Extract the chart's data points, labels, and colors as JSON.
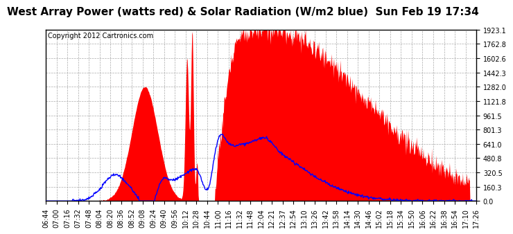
{
  "title": "West Array Power (watts red) & Solar Radiation (W/m2 blue)  Sun Feb 19 17:34",
  "copyright": "Copyright 2012 Cartronics.com",
  "bg_color": "#ffffff",
  "plot_bg_color": "#ffffff",
  "grid_color": "#aaaaaa",
  "red_fill_color": "#ff0000",
  "blue_line_color": "#0000ff",
  "ymin": 0.0,
  "ymax": 1923.1,
  "yticks": [
    0.0,
    160.3,
    320.5,
    480.8,
    641.0,
    801.3,
    961.5,
    1121.8,
    1282.0,
    1442.3,
    1602.6,
    1762.8,
    1923.1
  ],
  "x_labels": [
    "06:44",
    "07:00",
    "07:16",
    "07:32",
    "07:48",
    "08:04",
    "08:20",
    "08:36",
    "08:52",
    "09:08",
    "09:24",
    "09:40",
    "09:56",
    "10:12",
    "10:28",
    "10:44",
    "11:00",
    "11:16",
    "11:32",
    "11:48",
    "12:04",
    "12:21",
    "12:37",
    "12:54",
    "13:10",
    "13:26",
    "13:42",
    "13:58",
    "14:14",
    "14:30",
    "14:46",
    "15:02",
    "15:18",
    "15:34",
    "15:50",
    "16:06",
    "16:22",
    "16:38",
    "16:54",
    "17:10",
    "17:26"
  ],
  "title_fontsize": 11,
  "copyright_fontsize": 7,
  "tick_fontsize": 7
}
